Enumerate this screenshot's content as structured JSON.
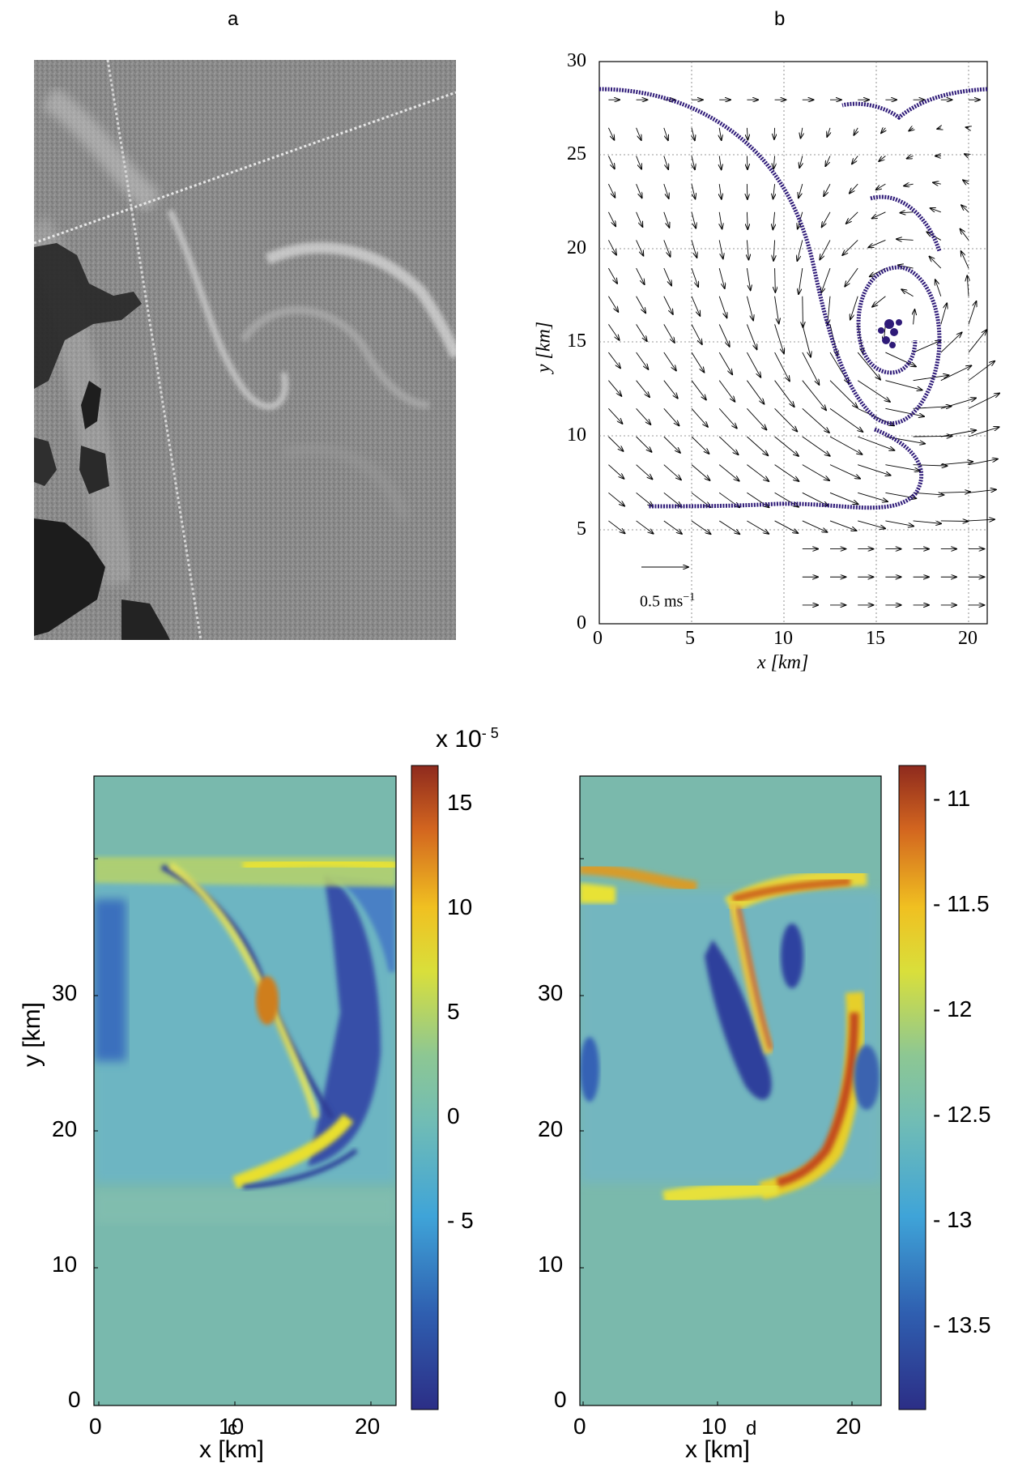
{
  "panels": {
    "a": {
      "letter": "a"
    },
    "b": {
      "letter": "b"
    },
    "c": {
      "letter": "c"
    },
    "d": {
      "letter": "d"
    }
  },
  "panel_b": {
    "x_label": "x [km]",
    "y_label": "y [km]",
    "x_ticks": [
      "0",
      "5",
      "10",
      "15",
      "20"
    ],
    "y_ticks": [
      "0",
      "5",
      "10",
      "15",
      "20",
      "25",
      "30"
    ],
    "scale_arrow_label": "0.5 ms",
    "scale_arrow_exp": "−1",
    "dot_color": "#2e1a78"
  },
  "panel_c": {
    "x_label": "x [km]",
    "y_label": "y [km]",
    "x_ticks": [
      "0",
      "10",
      "20"
    ],
    "y_ticks": [
      "0",
      "10",
      "20",
      "30"
    ],
    "colorbar_multiplier": "x 10",
    "colorbar_exponent": "- 5",
    "colorbar_ticks": [
      "15",
      "10",
      "5",
      "0",
      "- 5"
    ]
  },
  "panel_d": {
    "x_label": "x [km]",
    "x_ticks": [
      "0",
      "10",
      "20"
    ],
    "y_ticks": [
      "0",
      "10",
      "20",
      "30"
    ],
    "colorbar_ticks": [
      "- 11",
      "- 11.5",
      "- 12",
      "- 12.5",
      "- 13",
      "- 13.5"
    ]
  },
  "chart_data": [
    {
      "panel": "b",
      "type": "scatter",
      "xlabel": "x [km]",
      "ylabel": "y [km]",
      "xlim": [
        0,
        21
      ],
      "ylim": [
        0,
        30
      ],
      "grid": true,
      "x_ticks": [
        0,
        5,
        10,
        15,
        20
      ],
      "y_ticks": [
        0,
        5,
        10,
        15,
        20,
        25,
        30
      ],
      "scale_arrow": "0.5 ms^-1"
    },
    {
      "panel": "c",
      "type": "heatmap",
      "xlabel": "x [km]",
      "ylabel": "y [km]",
      "x_ticks": [
        0,
        10,
        20
      ],
      "y_ticks": [
        0,
        10,
        20,
        30
      ],
      "colorbar_range": [
        -9e-05,
        0.00017
      ],
      "colorbar_ticks": [
        15,
        10,
        5,
        0,
        -5
      ],
      "colorbar_scale": "x 10^-5"
    },
    {
      "panel": "d",
      "type": "heatmap",
      "xlabel": "x [km]",
      "x_ticks": [
        0,
        10,
        20
      ],
      "y_ticks": [
        0,
        10,
        20,
        30
      ],
      "colorbar_range": [
        -13.5,
        -10.8
      ],
      "colorbar_ticks": [
        -11,
        -11.5,
        -12,
        -12.5,
        -13,
        -13.5
      ]
    }
  ]
}
